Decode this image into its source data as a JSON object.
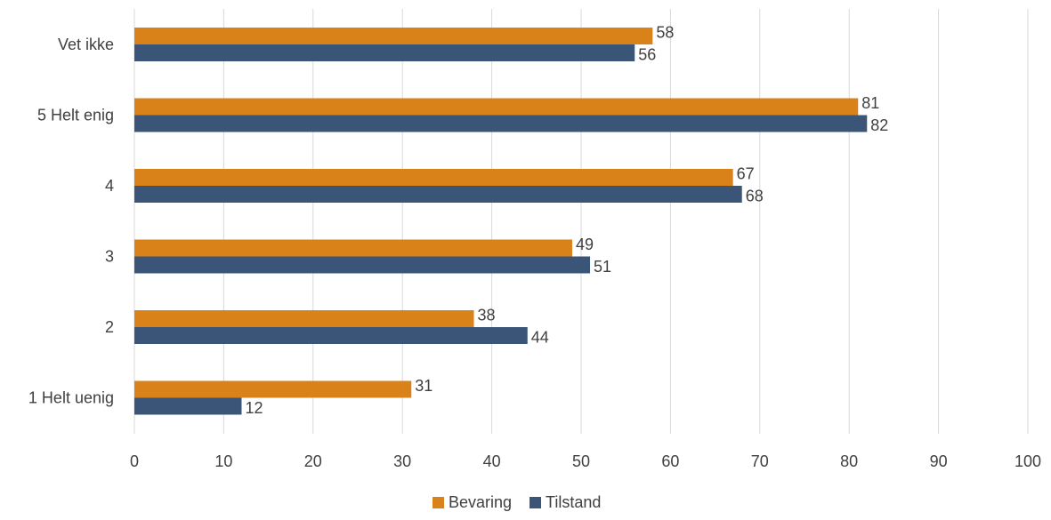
{
  "chart_data": {
    "type": "bar",
    "orientation": "horizontal",
    "categories": [
      "Vet ikke",
      "5 Helt enig",
      "4",
      "3",
      "2",
      "1 Helt uenig"
    ],
    "series": [
      {
        "name": "Bevaring",
        "color": "#D9821A",
        "values": [
          58,
          81,
          67,
          49,
          38,
          31
        ]
      },
      {
        "name": "Tilstand",
        "color": "#3A5578",
        "values": [
          56,
          82,
          68,
          51,
          44,
          12
        ]
      }
    ],
    "xlim": [
      0,
      100
    ],
    "x_ticks": [
      0,
      10,
      20,
      30,
      40,
      50,
      60,
      70,
      80,
      90,
      100
    ],
    "grid": true,
    "grid_color": "#D9D9D9",
    "legend": {
      "position": "bottom"
    }
  }
}
